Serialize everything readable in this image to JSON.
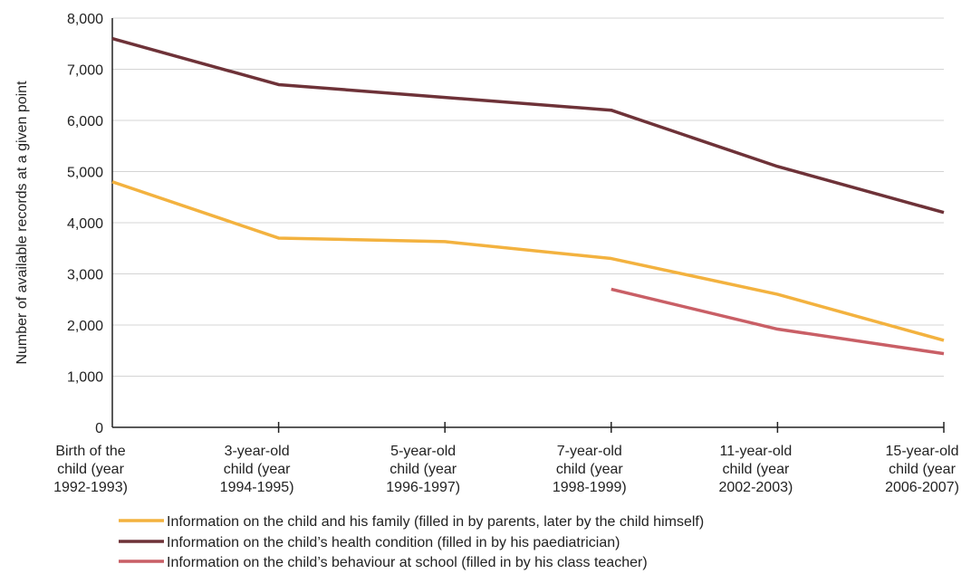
{
  "chart_data": {
    "type": "line",
    "title": "",
    "xlabel": "",
    "ylabel": "Number of available records at a given point",
    "ylim": [
      0,
      8000
    ],
    "yticks": [
      {
        "value": 0,
        "label": "0"
      },
      {
        "value": 1000,
        "label": "1,000"
      },
      {
        "value": 2000,
        "label": "2,000"
      },
      {
        "value": 3000,
        "label": "3,000"
      },
      {
        "value": 4000,
        "label": "4,000"
      },
      {
        "value": 5000,
        "label": "5,000"
      },
      {
        "value": 6000,
        "label": "6,000"
      },
      {
        "value": 7000,
        "label": "7,000"
      },
      {
        "value": 8000,
        "label": "8,000"
      }
    ],
    "categories": [
      [
        "Birth of the",
        "child (year",
        "1992-1993)"
      ],
      [
        "3-year-old",
        "child (year",
        "1994-1995)"
      ],
      [
        "5-year-old",
        "child (year",
        "1996-1997)"
      ],
      [
        "7-year-old",
        "child (year",
        "1998-1999)"
      ],
      [
        "11-year-old",
        "child (year",
        "2002-2003)"
      ],
      [
        "15-year-old",
        "child (year",
        "2006-2007)"
      ]
    ],
    "grid": true,
    "legend_position": "bottom",
    "series": [
      {
        "name": "Information on the child and his family (filled in by parents, later by the child himself)",
        "color": "#f3b23f",
        "values": [
          4800,
          3700,
          3630,
          3300,
          2600,
          1700
        ]
      },
      {
        "name": "Information on the child’s health condition (filled in by his paediatrician)",
        "color": "#6e3238",
        "values": [
          7600,
          6700,
          6450,
          6200,
          5100,
          4200
        ]
      },
      {
        "name": "Information on the child’s behaviour at school (filled in by his class teacher)",
        "color": "#c95f66",
        "values": [
          null,
          null,
          null,
          2700,
          1920,
          1440
        ]
      }
    ]
  }
}
